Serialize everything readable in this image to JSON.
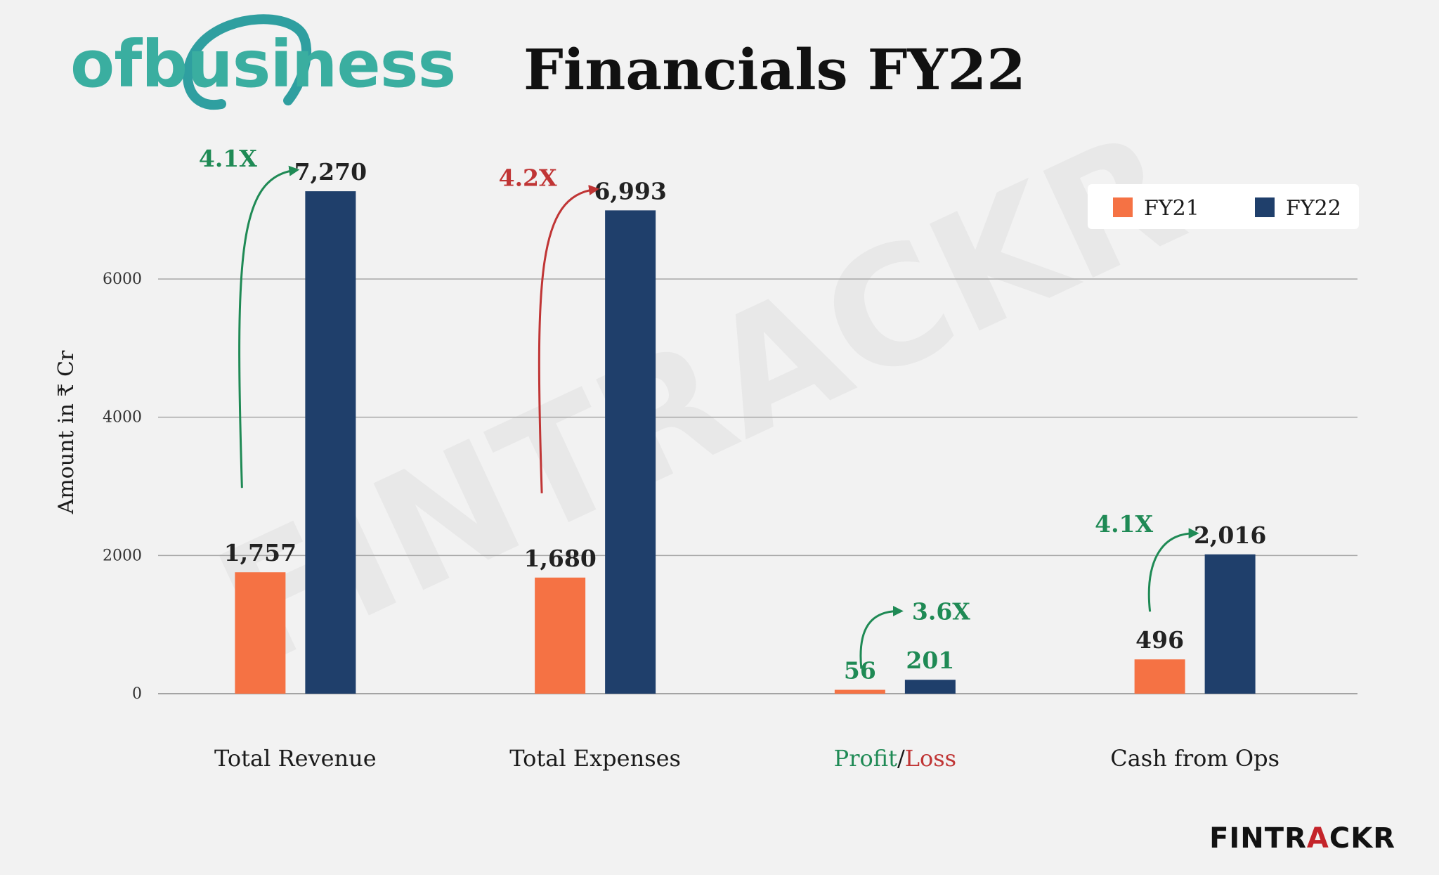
{
  "header": {
    "logo_text": "ofbusiness",
    "title": "Financials FY22"
  },
  "watermark": "FINTRACKR",
  "brand": {
    "prefix": "FINTR",
    "accent": "A",
    "suffix": "CKR"
  },
  "colors": {
    "fy21": "#f57244",
    "fy22": "#1f3f6b",
    "growth_green": "#1f8a55",
    "growth_red": "#c03535",
    "logo": "#3aaea0"
  },
  "chart_data": {
    "type": "bar",
    "ylabel": "Amount in ₹ Cr",
    "ylim": [
      0,
      7600
    ],
    "yticks": [
      0,
      2000,
      4000,
      6000
    ],
    "grid": true,
    "legend_position": "top-right",
    "categories": [
      {
        "label": "Total Revenue",
        "color": "#1a1a1a"
      },
      {
        "label": "Total Expenses",
        "color": "#1a1a1a"
      },
      {
        "parts": [
          {
            "text": "Profit",
            "color": "#1f8a55"
          },
          {
            "text": "/",
            "color": "#1a1a1a"
          },
          {
            "text": "Loss",
            "color": "#c03535"
          }
        ]
      },
      {
        "label": "Cash from Ops",
        "color": "#1a1a1a"
      }
    ],
    "series": [
      {
        "name": "FY21",
        "color": "#f57244",
        "values": [
          1757,
          1680,
          56,
          496
        ],
        "labels": [
          "1,757",
          "1,680",
          "56",
          "496"
        ],
        "label_colors": [
          "#222222",
          "#222222",
          "#1f8a55",
          "#222222"
        ]
      },
      {
        "name": "FY22",
        "color": "#1f3f6b",
        "values": [
          7270,
          6993,
          201,
          2016
        ],
        "labels": [
          "7,270",
          "6,993",
          "201",
          "2,016"
        ],
        "label_colors": [
          "#222222",
          "#222222",
          "#1f8a55",
          "#222222"
        ]
      }
    ],
    "growth": [
      {
        "category": 0,
        "text": "4.1X",
        "color": "#1f8a55"
      },
      {
        "category": 1,
        "text": "4.2X",
        "color": "#c03535"
      },
      {
        "category": 2,
        "text": "3.6X",
        "color": "#1f8a55"
      },
      {
        "category": 3,
        "text": "4.1X",
        "color": "#1f8a55"
      }
    ]
  }
}
